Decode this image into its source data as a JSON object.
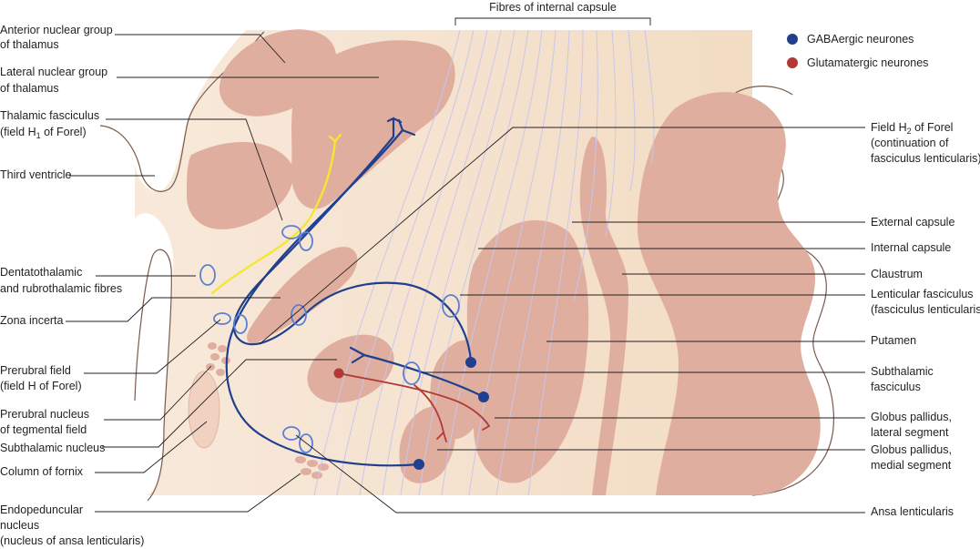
{
  "header_label": "Fibres of internal capsule",
  "legend": {
    "gaba": {
      "label": "GABAergic neurones",
      "color": "#1f3f8f"
    },
    "glut": {
      "label": "Glutamatergic neurones",
      "color": "#b13a34"
    }
  },
  "colors": {
    "background": "#f5e1cc",
    "nucleus": "#dfae9e",
    "fibre": "#c9c6ec",
    "yellow_tract": "#f4e733"
  },
  "labels_left": {
    "anterior": [
      "Anterior nuclear group",
      "of thalamus"
    ],
    "lateral": [
      "Lateral nuclear group",
      "of thalamus"
    ],
    "thalamic_fasc": {
      "line1": "Thalamic fasciculus",
      "line2_pre": "(field H",
      "line2_sub": "1",
      "line2_post": " of Forel)"
    },
    "third_ventricle": "Third ventricle",
    "dentatothalamic": [
      "Dentatothalamic",
      "and rubrothalamic fibres"
    ],
    "zona_incerta": "Zona incerta",
    "prerubral_field": [
      "Prerubral field",
      "(field H of Forel)"
    ],
    "prerubral_nucleus": [
      "Prerubral nucleus",
      "of tegmental field"
    ],
    "subthalamic_nucleus": "Subthalamic nucleus",
    "column_fornix": "Column of fornix",
    "endopeduncular": [
      "Endopeduncular",
      "nucleus",
      "(nucleus of ansa lenticularis)"
    ]
  },
  "labels_right": {
    "field_h2": {
      "line1_pre": "Field H",
      "line1_sub": "2",
      "line1_post": " of Forel",
      "line2": "(continuation of",
      "line3": "fasciculus lenticularis)"
    },
    "external_capsule": "External capsule",
    "internal_capsule": "Internal capsule",
    "claustrum": "Claustrum",
    "lenticular_fasc": [
      "Lenticular fasciculus",
      "(fasciculus lenticularis)"
    ],
    "putamen": "Putamen",
    "subthalamic_fasc": [
      "Subthalamic",
      "fasciculus"
    ],
    "gp_lateral": [
      "Globus pallidus,",
      "lateral segment"
    ],
    "gp_medial": [
      "Globus pallidus,",
      "medial segment"
    ],
    "ansa": "Ansa lenticularis"
  }
}
